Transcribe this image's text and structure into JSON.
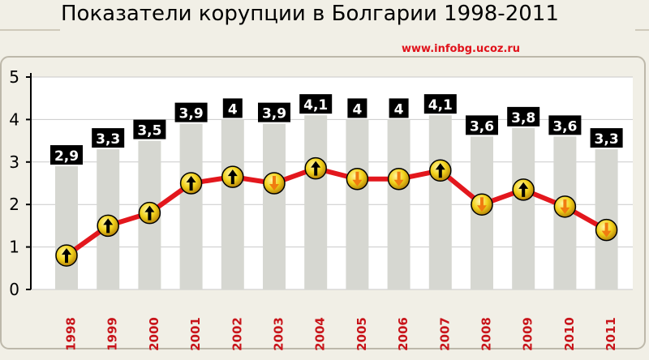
{
  "title": "Показатели корупции в Болгарии 1998-2011",
  "source_url": "www.infobg.ucoz.ru",
  "colors": {
    "background": "#f1efe6",
    "plot_background": "#ffffff",
    "index_bar": "#d6d7d1",
    "value_label_bg": "#000000",
    "value_label_text": "#ffffff",
    "line": "#e3171d",
    "marker": "#f2d21a",
    "arrow_up": "#000000",
    "arrow_down": "#f07c10",
    "year_label": "#c8141a"
  },
  "chart_data": {
    "type": "bar",
    "categories": [
      "1998",
      "1999",
      "2000",
      "2001",
      "2002",
      "2003",
      "2004",
      "2005",
      "2006",
      "2007",
      "2008",
      "2009",
      "2010",
      "2011"
    ],
    "series": [
      {
        "type": "bar",
        "values": [
          2.9,
          3.3,
          3.5,
          3.9,
          4.0,
          3.9,
          4.1,
          4.0,
          4.0,
          4.1,
          3.6,
          3.8,
          3.6,
          3.3
        ],
        "labels": [
          "2,9",
          "3,3",
          "3,5",
          "3,9",
          "4",
          "3,9",
          "4,1",
          "4",
          "4",
          "4,1",
          "3,6",
          "3,8",
          "3,6",
          "3,3"
        ]
      },
      {
        "type": "line",
        "values": [
          0.8,
          1.5,
          1.8,
          2.5,
          2.65,
          2.5,
          2.85,
          2.6,
          2.6,
          2.8,
          2.0,
          2.35,
          1.95,
          1.4
        ],
        "markers": [
          "up",
          "up",
          "up",
          "up",
          "up",
          "down",
          "up",
          "down",
          "down",
          "up",
          "down",
          "up",
          "down",
          "down"
        ]
      }
    ],
    "yticks": [
      "0",
      "1",
      "2",
      "3",
      "4",
      "5"
    ],
    "ylim": [
      0,
      5
    ],
    "grid": true,
    "xlabel": "",
    "ylabel": ""
  }
}
